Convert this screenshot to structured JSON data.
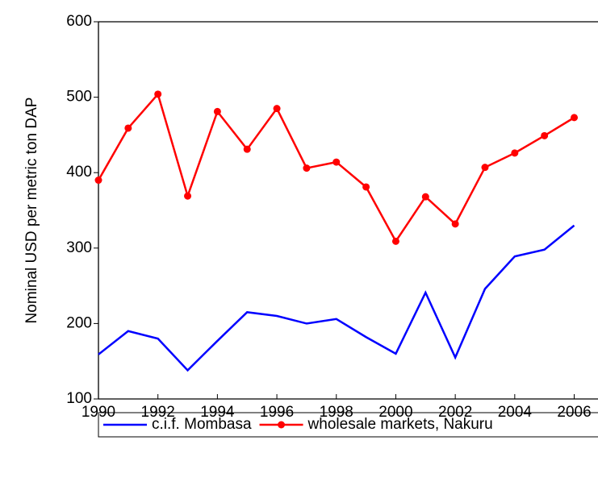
{
  "chart_data": {
    "type": "line",
    "ylabel": "Nominal USD per metric ton DAP",
    "x": [
      1990,
      1991,
      1992,
      1993,
      1994,
      1995,
      1996,
      1997,
      1998,
      1999,
      2000,
      2001,
      2002,
      2003,
      2004,
      2005,
      2006
    ],
    "series": [
      {
        "name": "c.i.f. Mombasa",
        "color": "#0000ff",
        "marker": false,
        "values": [
          159,
          190,
          180,
          138,
          177,
          215,
          210,
          200,
          206,
          182,
          160,
          241,
          155,
          246,
          289,
          298,
          330
        ]
      },
      {
        "name": "wholesale markets, Nakuru",
        "color": "#ff0000",
        "marker": true,
        "values": [
          390,
          459,
          504,
          369,
          481,
          431,
          485,
          406,
          414,
          381,
          309,
          368,
          332,
          407,
          426,
          449,
          473
        ]
      }
    ],
    "xlim": [
      1990,
      2006.8
    ],
    "xticks": [
      1990,
      1992,
      1994,
      1996,
      1998,
      2000,
      2002,
      2004,
      2006
    ],
    "ylim": [
      100,
      600
    ],
    "yticks": [
      100,
      200,
      300,
      400,
      500,
      600
    ],
    "legend": "bottom"
  }
}
